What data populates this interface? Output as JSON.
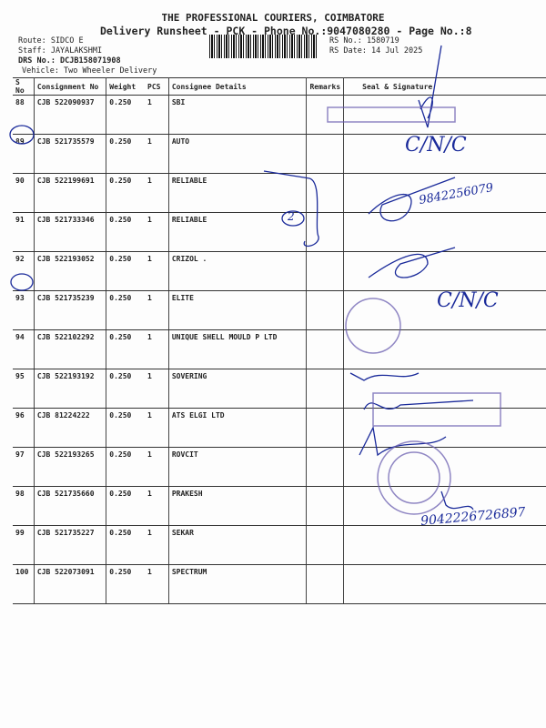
{
  "header": {
    "company": "THE PROFESSIONAL COURIERS, COIMBATORE",
    "subtitle": "Delivery Runsheet - PCK - Phone No.:9047080280 - Page No.:8",
    "route": "Route: SIDCO E",
    "staff": "Staff: JAYALAKSHMI",
    "drs_no": "DRS No.: DCJB158071908",
    "vehicle": "Vehicle: Two Wheeler Delivery",
    "rs_no": "RS No.: 1580719",
    "rs_date": "RS Date: 14 Jul 2025"
  },
  "table": {
    "columns": [
      "S No",
      "Consignment No",
      "Weight",
      "PCS",
      "Consignee Details",
      "Remarks",
      "Seal & Signature"
    ],
    "rows": [
      {
        "sno": "88",
        "cons": "CJB 522090937",
        "weight": "0.250",
        "pcs": "1",
        "consignee": "SBI"
      },
      {
        "sno": "89",
        "cons": "CJB 521735579",
        "weight": "0.250",
        "pcs": "1",
        "consignee": "AUTO"
      },
      {
        "sno": "90",
        "cons": "CJB 522199691",
        "weight": "0.250",
        "pcs": "1",
        "consignee": "RELIABLE"
      },
      {
        "sno": "91",
        "cons": "CJB 521733346",
        "weight": "0.250",
        "pcs": "1",
        "consignee": "RELIABLE"
      },
      {
        "sno": "92",
        "cons": "CJB 522193052",
        "weight": "0.250",
        "pcs": "1",
        "consignee": "CRIZOL ."
      },
      {
        "sno": "93",
        "cons": "CJB 521735239",
        "weight": "0.250",
        "pcs": "1",
        "consignee": "ELITE"
      },
      {
        "sno": "94",
        "cons": "CJB 522102292",
        "weight": "0.250",
        "pcs": "1",
        "consignee": "UNIQUE SHELL MOULD P LTD"
      },
      {
        "sno": "95",
        "cons": "CJB 522193192",
        "weight": "0.250",
        "pcs": "1",
        "consignee": "SOVERING"
      },
      {
        "sno": "96",
        "cons": "CJB 81224222",
        "weight": "0.250",
        "pcs": "1",
        "consignee": "ATS ELGI LTD"
      },
      {
        "sno": "97",
        "cons": "CJB 522193265",
        "weight": "0.250",
        "pcs": "1",
        "consignee": "ROVCIT"
      },
      {
        "sno": "98",
        "cons": "CJB 521735660",
        "weight": "0.250",
        "pcs": "1",
        "consignee": "PRAKESH"
      },
      {
        "sno": "99",
        "cons": "CJB 521735227",
        "weight": "0.250",
        "pcs": "1",
        "consignee": "SEKAR"
      },
      {
        "sno": "100",
        "cons": "CJB 522073091",
        "weight": "0.250",
        "pcs": "1",
        "consignee": "SPECTRUM"
      }
    ]
  },
  "handwriting": {
    "row89": "C/N/C",
    "row90_phone": "9842256079",
    "row91_mark": "2",
    "row93": "C/N/C",
    "row99_phone": "9042226726897"
  },
  "colors": {
    "ink": "#1a2a9a",
    "stamp": "#6b5fb0"
  }
}
